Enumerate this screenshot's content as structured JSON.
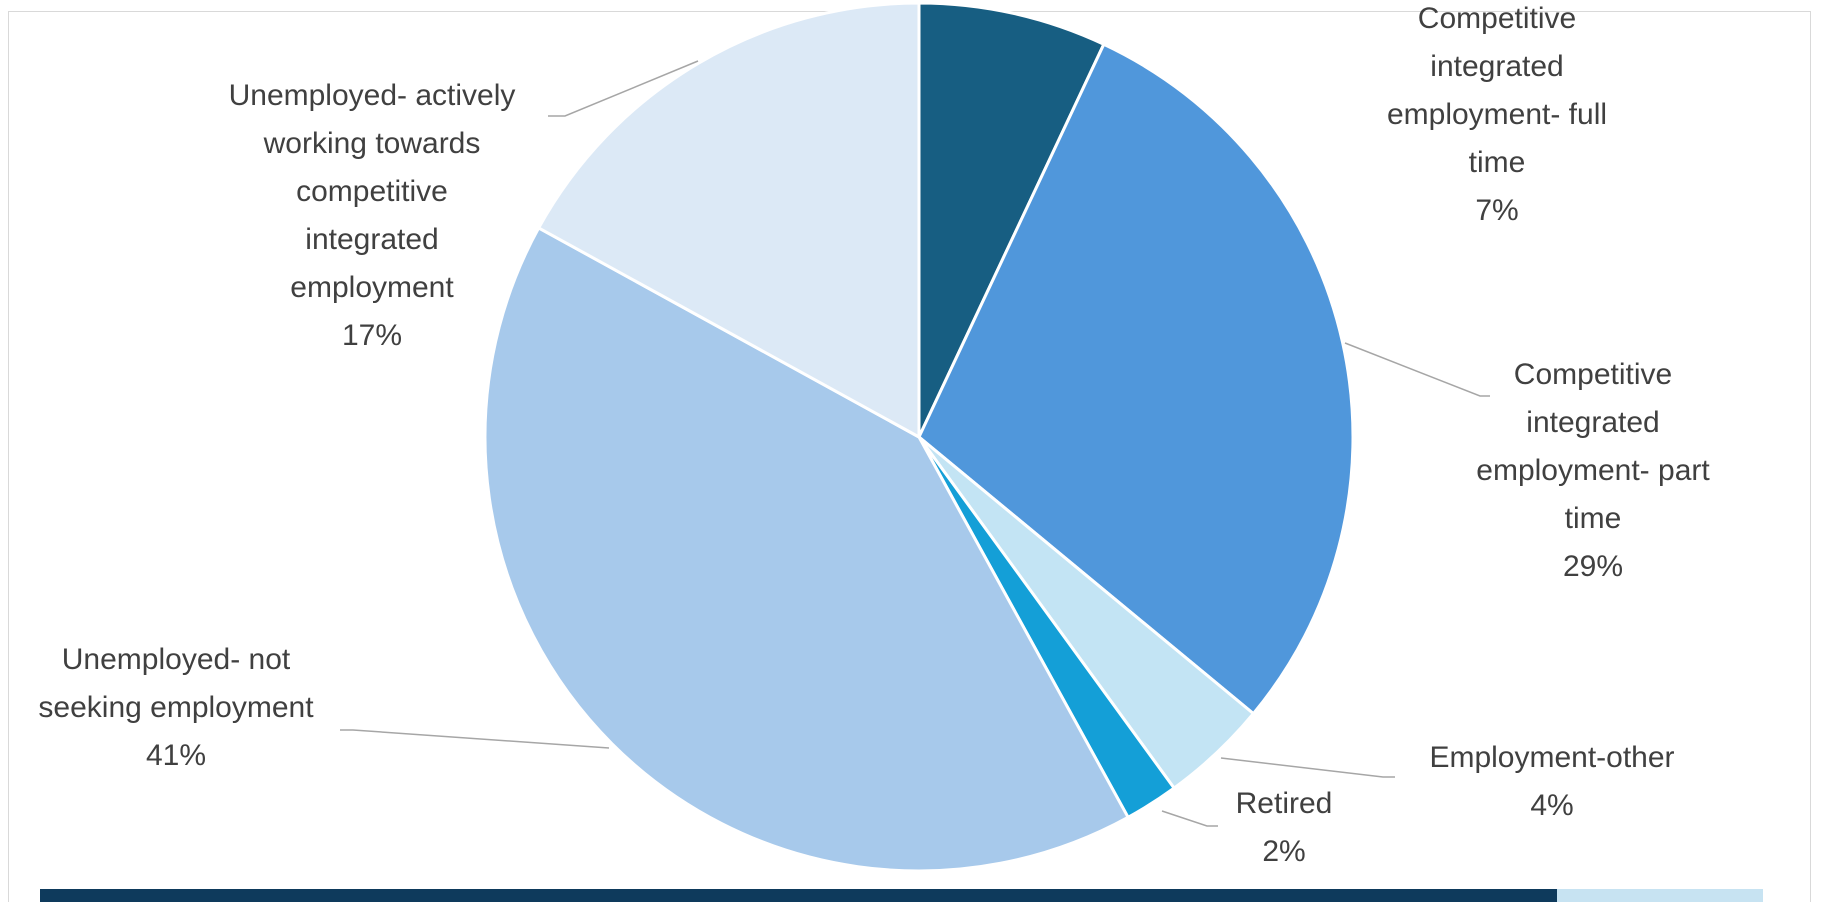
{
  "chart_data": {
    "type": "pie",
    "title": "",
    "slices": [
      {
        "name": "Competitive integrated employment- full time",
        "label_lines": [
          "Competitive",
          "integrated",
          "employment- full",
          "time"
        ],
        "percent_label": "7%",
        "value": 7,
        "color": "#175e82"
      },
      {
        "name": "Competitive integrated employment- part time",
        "label_lines": [
          "Competitive",
          "integrated",
          "employment- part",
          "time"
        ],
        "percent_label": "29%",
        "value": 29,
        "color": "#5097db"
      },
      {
        "name": "Employment-other",
        "label_lines": [
          "Employment-other"
        ],
        "percent_label": "4%",
        "value": 4,
        "color": "#c3e4f4"
      },
      {
        "name": "Retired",
        "label_lines": [
          "Retired"
        ],
        "percent_label": "2%",
        "value": 2,
        "color": "#149fd7"
      },
      {
        "name": "Unemployed- not seeking employment",
        "label_lines": [
          "Unemployed- not",
          "seeking employment"
        ],
        "percent_label": "41%",
        "value": 41,
        "color": "#a7c9eb"
      },
      {
        "name": "Unemployed- actively working towards competitive integrated employment",
        "label_lines": [
          "Unemployed- actively",
          "working towards",
          "competitive",
          "integrated",
          "employment"
        ],
        "percent_label": "17%",
        "value": 17,
        "color": "#dce9f6"
      }
    ]
  },
  "colors": {
    "slice_border": "#ffffff",
    "label_text": "#404040",
    "leader_line": "#a6a6a6",
    "bottom_bar_dark": "#0e3a5c",
    "bottom_bar_light": "#c7e3f2"
  }
}
